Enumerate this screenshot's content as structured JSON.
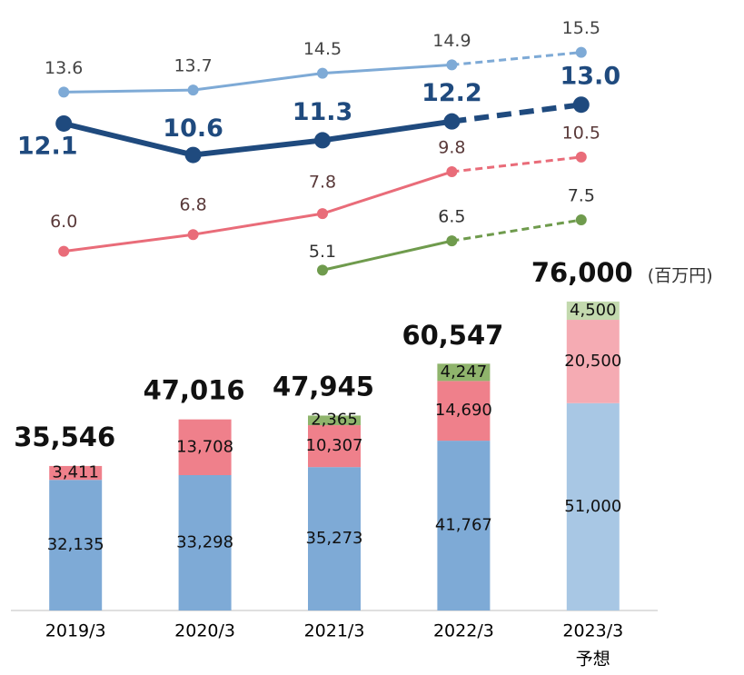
{
  "chart_data": {
    "type": "bar",
    "categories": [
      "2019/3",
      "2020/3",
      "2021/3",
      "2022/3",
      "2023/3"
    ],
    "forecast_label": "予想",
    "unit_label": "(百万円)",
    "ylim": [
      0,
      80000
    ],
    "y2lim": [
      0,
      17
    ],
    "series": [
      {
        "name": "blue",
        "color": "#7eaad6",
        "forecast_color": "#a8c7e4",
        "values": [
          32135,
          33298,
          35273,
          41767,
          51000
        ],
        "value_labels": [
          "32,135",
          "33,298",
          "35,273",
          "41,767",
          "51,000"
        ]
      },
      {
        "name": "red",
        "color": "#ef808b",
        "forecast_color": "#f5abb3",
        "values": [
          3411,
          13708,
          10307,
          14690,
          20500
        ],
        "value_labels": [
          "3,411",
          "13,708",
          "10,307",
          "14,690",
          "20,500"
        ]
      },
      {
        "name": "green",
        "color": "#8fb46c",
        "forecast_color": "#c3d9ae",
        "values": [
          null,
          null,
          2365,
          4247,
          4500
        ],
        "value_labels": [
          null,
          null,
          "2,365",
          "4,247",
          "4,500"
        ]
      }
    ],
    "totals": [
      35546,
      47016,
      47945,
      60547,
      76000
    ],
    "total_labels": [
      "35,546",
      "47,016",
      "47,945",
      "60,547",
      "76,000"
    ],
    "lines": [
      {
        "color": "#7eaad6",
        "values": [
          13.6,
          13.7,
          14.5,
          14.9,
          15.5
        ],
        "value_labels": [
          "13.6",
          "13.7",
          "14.5",
          "14.9",
          "15.5"
        ]
      },
      {
        "color": "#1f4a7e",
        "values": [
          12.1,
          10.6,
          11.3,
          12.2,
          13.0
        ],
        "value_labels": [
          "12.1",
          "10.6",
          "11.3",
          "12.2",
          "13.0"
        ]
      },
      {
        "color": "#e96c79",
        "values": [
          6.0,
          6.8,
          7.8,
          9.8,
          10.5
        ],
        "value_labels": [
          "6.0",
          "6.8",
          "7.8",
          "9.8",
          "10.5"
        ]
      },
      {
        "color": "#6f9b4d",
        "values": [
          null,
          null,
          5.1,
          6.5,
          7.5
        ],
        "value_labels": [
          null,
          null,
          "5.1",
          "6.5",
          "7.5"
        ]
      }
    ]
  }
}
